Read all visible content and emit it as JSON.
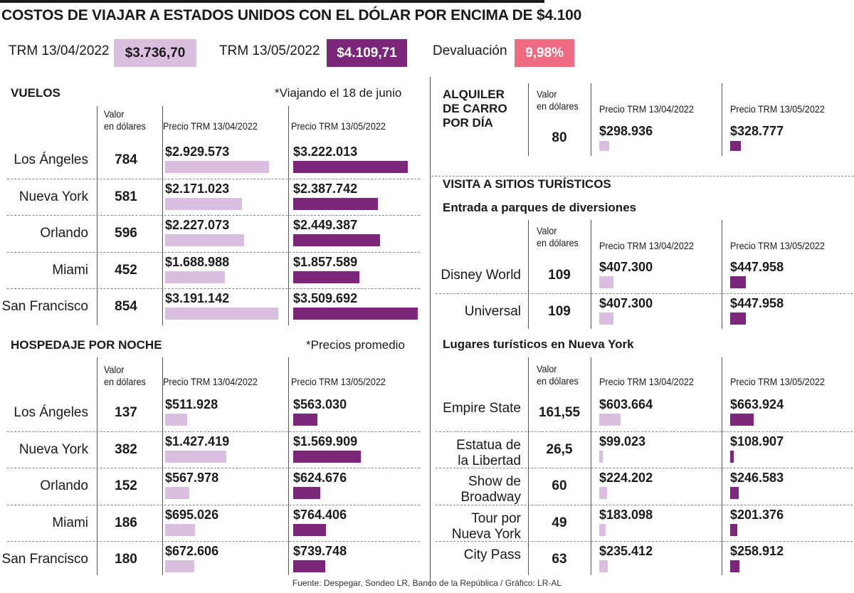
{
  "title": "COSTOS DE VIAJAR A ESTADOS UNIDOS CON EL DÓLAR POR ENCIMA DE $4.100",
  "header": {
    "trm1_label": "TRM 13/04/2022",
    "trm1_value": "$3.736,70",
    "trm2_label": "TRM 13/05/2022",
    "trm2_value": "$4.109,71",
    "deval_label": "Devaluación",
    "deval_value": "9,98%"
  },
  "colors": {
    "light_purple": "#dbbfe0",
    "dark_purple": "#7b2779",
    "pink": "#ef6b82"
  },
  "col_headers": {
    "usd": "Valor en dólares",
    "trm1": "Precio TRM 13/04/2022",
    "trm2": "Precio TRM 13/05/2022"
  },
  "chart_data": [
    {
      "type": "bar",
      "title": "VUELOS",
      "note": "*Viajando el 18 de junio",
      "categories": [
        "Los Ángeles",
        "Nueva York",
        "Orlando",
        "Miami",
        "San Francisco"
      ],
      "usd": [
        "784",
        "581",
        "596",
        "452",
        "854"
      ],
      "series": [
        {
          "name": "Precio TRM 13/04/2022",
          "labels": [
            "$2.929.573",
            "$2.171.023",
            "$2.227.073",
            "$1.688.988",
            "$3.191.142"
          ],
          "values": [
            2929573,
            2171023,
            2227073,
            1688988,
            3191142
          ]
        },
        {
          "name": "Precio TRM 13/05/2022",
          "labels": [
            "$3.222.013",
            "$2.387.742",
            "$2.449.387",
            "$1.857.589",
            "$3.509.692"
          ],
          "values": [
            3222013,
            2387742,
            2449387,
            1857589,
            3509692
          ]
        }
      ]
    },
    {
      "type": "bar",
      "title": "HOSPEDAJE POR NOCHE",
      "note": "*Precios promedio",
      "categories": [
        "Los Ángeles",
        "Nueva York",
        "Orlando",
        "Miami",
        "San Francisco"
      ],
      "usd": [
        "137",
        "382",
        "152",
        "186",
        "180"
      ],
      "series": [
        {
          "name": "Precio TRM 13/04/2022",
          "labels": [
            "$511.928",
            "$1.427.419",
            "$567.978",
            "$695.026",
            "$672.606"
          ],
          "values": [
            511928,
            1427419,
            567978,
            695026,
            672606
          ]
        },
        {
          "name": "Precio TRM 13/05/2022",
          "labels": [
            "$563.030",
            "$1.569.909",
            "$624.676",
            "$764.406",
            "$739.748"
          ],
          "values": [
            563030,
            1569909,
            624676,
            764406,
            739748
          ]
        }
      ]
    },
    {
      "type": "bar",
      "title": "ALQUILER DE CARRO POR DÍA",
      "categories": [
        ""
      ],
      "usd": [
        "80"
      ],
      "series": [
        {
          "name": "Precio TRM 13/04/2022",
          "labels": [
            "$298.936"
          ],
          "values": [
            298936
          ]
        },
        {
          "name": "Precio TRM 13/05/2022",
          "labels": [
            "$328.777"
          ],
          "values": [
            328777
          ]
        }
      ]
    },
    {
      "type": "bar",
      "title": "VISITA A SITIOS TURÍSTICOS",
      "subtitle": "Entrada a parques de diversiones",
      "categories": [
        "Disney World",
        "Universal"
      ],
      "usd": [
        "109",
        "109"
      ],
      "series": [
        {
          "name": "Precio TRM 13/04/2022",
          "labels": [
            "$407.300",
            "$407.300"
          ],
          "values": [
            407300,
            407300
          ]
        },
        {
          "name": "Precio TRM 13/05/2022",
          "labels": [
            "$447.958",
            "$447.958"
          ],
          "values": [
            447958,
            447958
          ]
        }
      ]
    },
    {
      "type": "bar",
      "title": "Lugares turísticos en Nueva York",
      "categories": [
        "Empire State",
        "Estatua de la Libertad",
        "Show de Broadway",
        "Tour por Nueva York",
        "City Pass"
      ],
      "usd": [
        "161,55",
        "26,5",
        "60",
        "49",
        "63"
      ],
      "series": [
        {
          "name": "Precio TRM 13/04/2022",
          "labels": [
            "$603.664",
            "$99.023",
            "$224.202",
            "$183.098",
            "$235.412"
          ],
          "values": [
            603664,
            99023,
            224202,
            183098,
            235412
          ]
        },
        {
          "name": "Precio TRM 13/05/2022",
          "labels": [
            "$663.924",
            "$108.907",
            "$246.583",
            "$201.376",
            "$258.912"
          ],
          "values": [
            663924,
            108907,
            246583,
            201376,
            258912
          ]
        }
      ]
    }
  ],
  "source": "Fuente: Despegar, Sondeo LR, Banco de la República / Gráfico: LR-AL"
}
